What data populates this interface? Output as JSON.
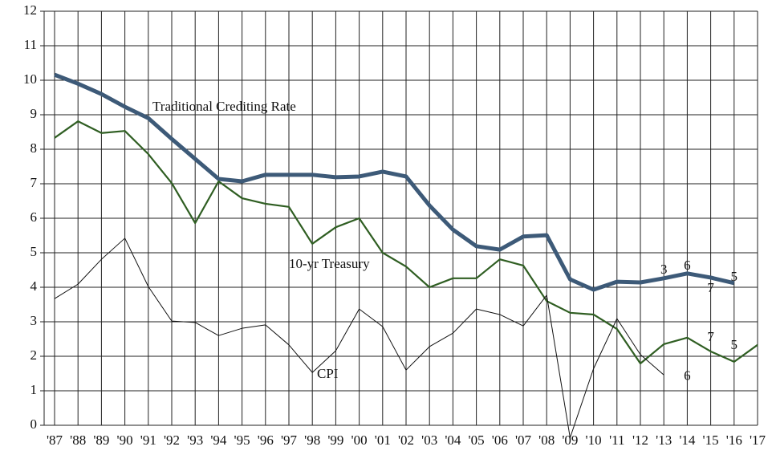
{
  "chart_data": {
    "type": "line",
    "categories": [
      "'87",
      "'88",
      "'89",
      "'90",
      "'91",
      "'92",
      "'93",
      "'94",
      "'95",
      "'96",
      "'97",
      "'98",
      "'99",
      "'00",
      "'01",
      "'02",
      "'03",
      "'04",
      "'05",
      "'06",
      "'07",
      "'08",
      "'09",
      "'10",
      "'11",
      "'12",
      "'13",
      "'14",
      "'15",
      "'16",
      "'17"
    ],
    "series": [
      {
        "name": "Traditional Crediting Rate",
        "color": "#3d5a78",
        "values": [
          10.16,
          9.9,
          9.6,
          9.23,
          8.9,
          8.3,
          7.72,
          7.14,
          7.07,
          7.26,
          7.26,
          7.26,
          7.19,
          7.21,
          7.35,
          7.21,
          6.37,
          5.67,
          5.19,
          5.09,
          5.47,
          5.51,
          4.23,
          3.93,
          4.16,
          4.14,
          4.26,
          4.4,
          4.28,
          4.12,
          null
        ]
      },
      {
        "name": "10-yr Treasury",
        "color": "#2f5e22",
        "values": [
          8.33,
          8.81,
          8.47,
          8.53,
          7.86,
          7.02,
          5.86,
          7.07,
          6.58,
          6.42,
          6.33,
          5.26,
          5.74,
          6.0,
          5.0,
          4.6,
          4.0,
          4.26,
          4.26,
          4.81,
          4.63,
          3.6,
          3.26,
          3.21,
          2.79,
          1.79,
          2.35,
          2.54,
          2.14,
          1.84,
          2.33
        ]
      },
      {
        "name": "CPI",
        "color": "#111111",
        "values": [
          3.67,
          4.09,
          4.81,
          5.42,
          4.02,
          3.02,
          2.98,
          2.6,
          2.81,
          2.91,
          2.33,
          1.53,
          2.16,
          3.37,
          2.86,
          1.6,
          2.28,
          2.67,
          3.37,
          3.21,
          2.88,
          3.77,
          -0.36,
          1.64,
          3.09,
          2.05,
          1.46,
          null,
          null,
          null,
          null
        ]
      }
    ],
    "annotations": [
      {
        "text": "3",
        "x": "'13",
        "y": 4.49
      },
      {
        "text": "6",
        "x": "'14",
        "y": 4.6
      },
      {
        "text": "7",
        "x": "'15",
        "y": 3.95
      },
      {
        "text": "5",
        "x": "'16",
        "y": 4.28
      },
      {
        "text": "7",
        "x": "'15",
        "y": 2.53
      },
      {
        "text": "5",
        "x": "'16",
        "y": 2.3
      },
      {
        "text": "6",
        "x": "'14",
        "y": 1.4
      }
    ],
    "ylim": [
      0,
      12
    ],
    "yticks": [
      0,
      1,
      2,
      3,
      4,
      5,
      6,
      7,
      8,
      9,
      10,
      11,
      12
    ],
    "grid": true
  }
}
